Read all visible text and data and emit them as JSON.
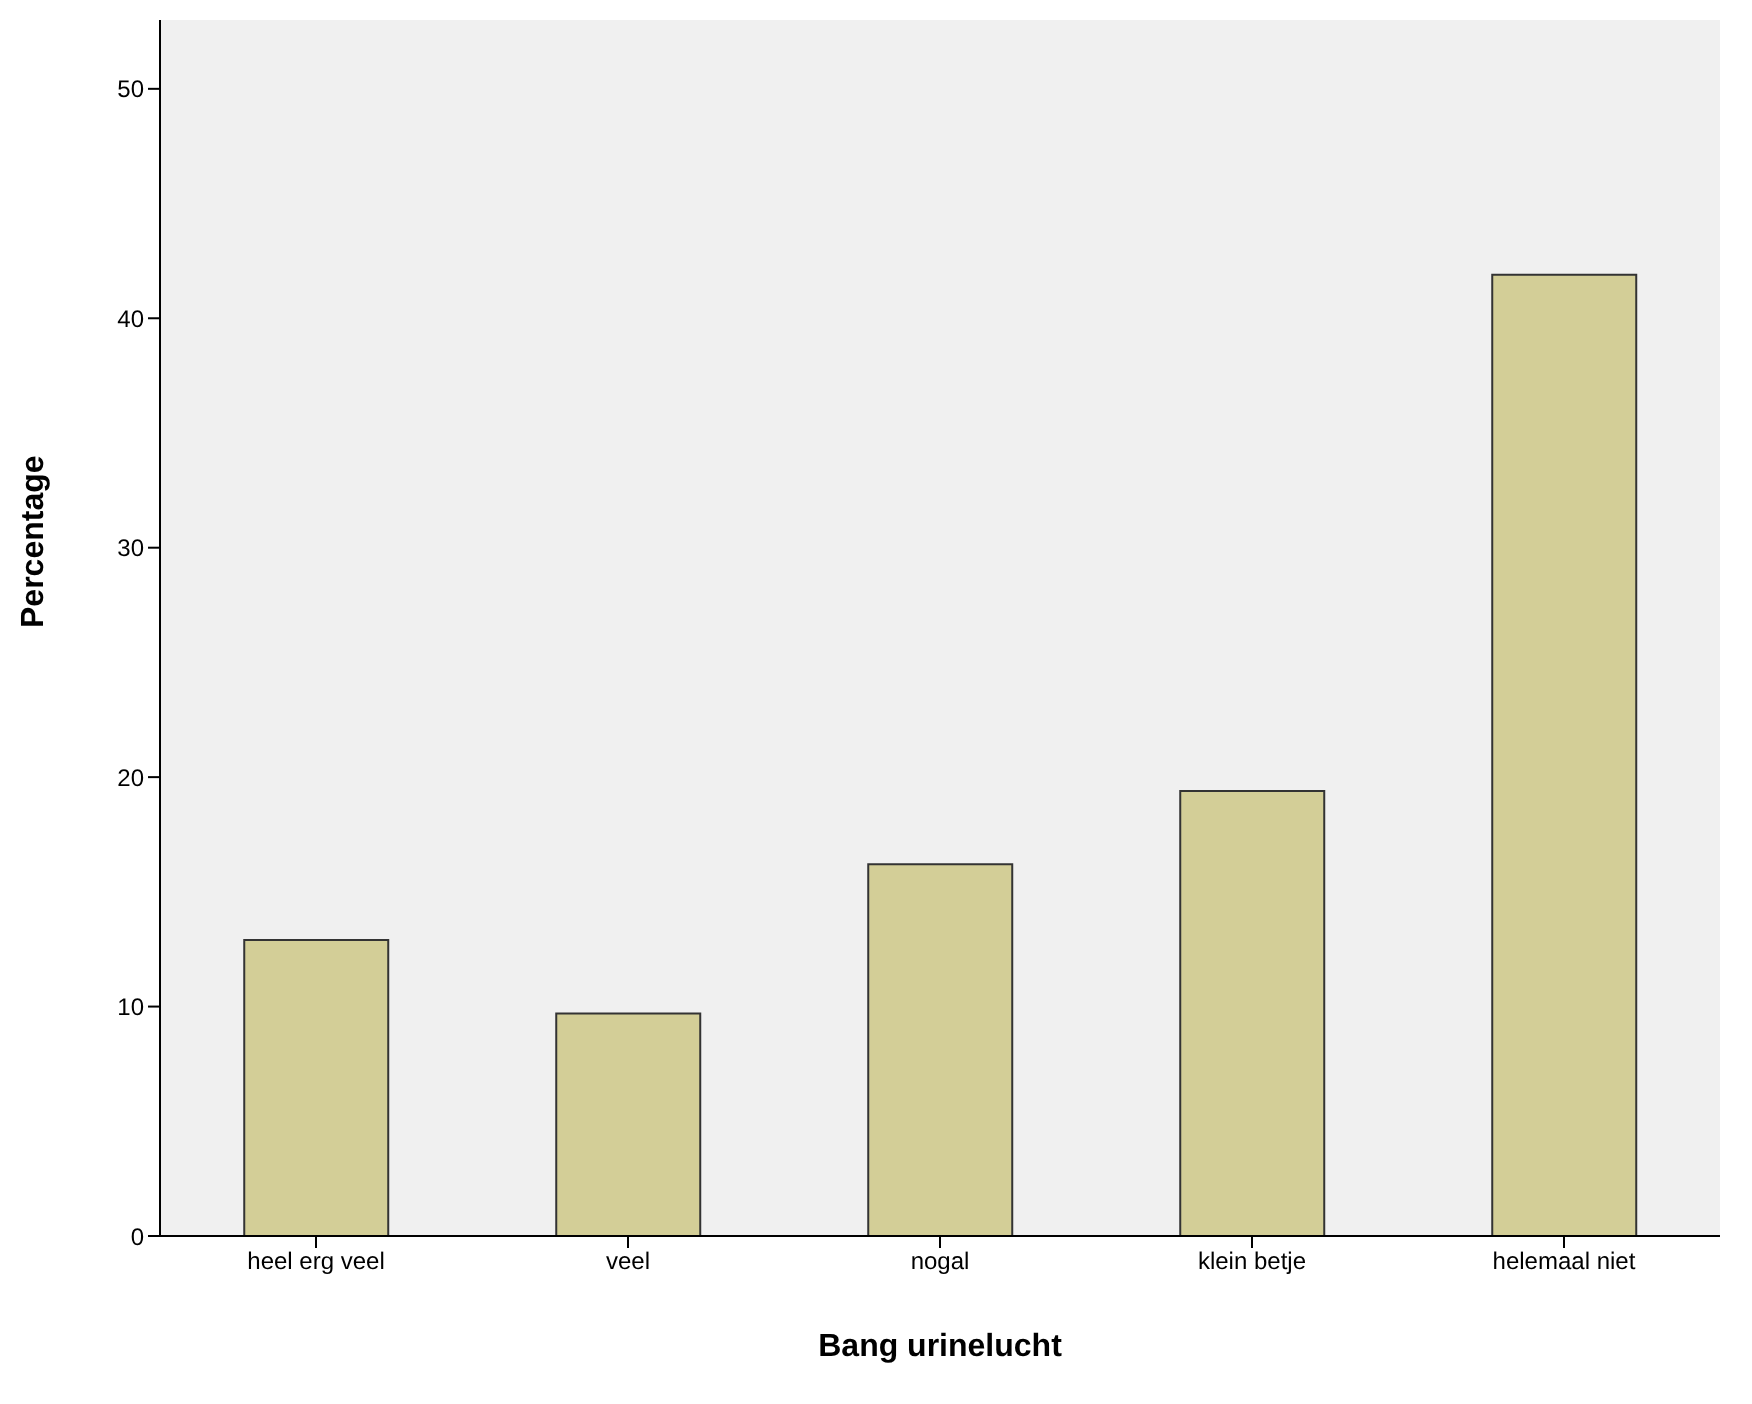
{
  "chart_data": {
    "type": "bar",
    "xlabel": "Bang urinelucht",
    "ylabel": "Percentage",
    "categories": [
      "heel erg veel",
      "veel",
      "nogal",
      "klein betje",
      "helemaal niet"
    ],
    "values": [
      12.9,
      9.7,
      16.2,
      19.4,
      41.9
    ],
    "color": "#d3ce97",
    "ylim": [
      0,
      53
    ],
    "yticks": [
      0,
      10,
      20,
      30,
      40,
      50
    ],
    "grid": false,
    "legend": false
  }
}
